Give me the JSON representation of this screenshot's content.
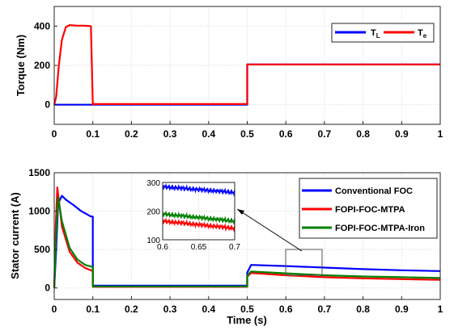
{
  "chart_data": [
    {
      "type": "line",
      "ylabel": "Torque (Nm)",
      "xlabel": "",
      "xlim": [
        0,
        1
      ],
      "ylim": [
        -100,
        500
      ],
      "yticks": [
        "0",
        "200",
        "400"
      ],
      "xticks": [
        "0",
        "0.1",
        "0.2",
        "0.3",
        "0.4",
        "0.5",
        "0.6",
        "0.7",
        "0.8",
        "0.9",
        "1"
      ],
      "grid": true,
      "legend_position": "top-right",
      "legend": {
        "TL_main": "T",
        "TL_sub": "L",
        "Te_main": "T",
        "Te_sub": "e"
      },
      "series": [
        {
          "name": "TL",
          "color": "#0000ff",
          "x": [
            0,
            0.1,
            0.1,
            0.5,
            0.5,
            1.0
          ],
          "y": [
            0,
            0,
            0,
            0,
            205,
            205
          ]
        },
        {
          "name": "Te",
          "color": "#ff0000",
          "x": [
            0,
            0.005,
            0.012,
            0.02,
            0.03,
            0.04,
            0.06,
            0.08,
            0.095,
            0.1,
            0.1,
            0.3,
            0.5,
            0.5,
            1.0
          ],
          "y": [
            0,
            40,
            200,
            330,
            395,
            405,
            402,
            402,
            400,
            0,
            3,
            3,
            3,
            205,
            205
          ]
        }
      ]
    },
    {
      "type": "line",
      "ylabel": "Stator current (A)",
      "xlabel": "Time (s)",
      "xlim": [
        0,
        1
      ],
      "ylim": [
        -150,
        1500
      ],
      "yticks": [
        "0",
        "500",
        "1000",
        "1500"
      ],
      "xticks": [
        "0",
        "0.1",
        "0.2",
        "0.3",
        "0.4",
        "0.5",
        "0.6",
        "0.7",
        "0.8",
        "0.9",
        "1"
      ],
      "grid": true,
      "legend_position": "top-right",
      "series": [
        {
          "name": "Conventional FOC",
          "color": "#0000ff",
          "x": [
            0,
            0.005,
            0.01,
            0.02,
            0.03,
            0.05,
            0.07,
            0.095,
            0.1,
            0.1,
            0.3,
            0.5,
            0.5,
            0.51,
            0.6,
            0.7,
            0.8,
            0.9,
            1.0
          ],
          "y": [
            0,
            500,
            1100,
            1200,
            1150,
            1080,
            1000,
            930,
            930,
            30,
            30,
            30,
            200,
            300,
            285,
            265,
            245,
            230,
            220
          ]
        },
        {
          "name": "FOPI-FOC-MTPA",
          "color": "#ff0000",
          "x": [
            0,
            0.004,
            0.008,
            0.012,
            0.02,
            0.04,
            0.06,
            0.08,
            0.095,
            0.1,
            0.1,
            0.3,
            0.5,
            0.5,
            0.51,
            0.6,
            0.7,
            0.8,
            0.9,
            1.0
          ],
          "y": [
            0,
            800,
            1310,
            1150,
            800,
            470,
            330,
            260,
            230,
            220,
            15,
            15,
            15,
            150,
            195,
            165,
            140,
            125,
            115,
            105
          ]
        },
        {
          "name": "FOPI-FOC-MTPA-Iron",
          "color": "#008000",
          "x": [
            0,
            0.005,
            0.01,
            0.02,
            0.04,
            0.06,
            0.08,
            0.095,
            0.1,
            0.1,
            0.3,
            0.5,
            0.5,
            0.51,
            0.6,
            0.7,
            0.8,
            0.9,
            1.0
          ],
          "y": [
            0,
            700,
            1180,
            870,
            520,
            370,
            300,
            280,
            270,
            20,
            20,
            20,
            160,
            215,
            190,
            165,
            150,
            140,
            130
          ]
        }
      ],
      "inset": {
        "xlim": [
          0.6,
          0.7
        ],
        "ylim": [
          100,
          300
        ],
        "xticks": [
          "0.6",
          "0.65",
          "0.7"
        ],
        "yticks": [
          "100",
          "200",
          "300"
        ]
      }
    }
  ]
}
